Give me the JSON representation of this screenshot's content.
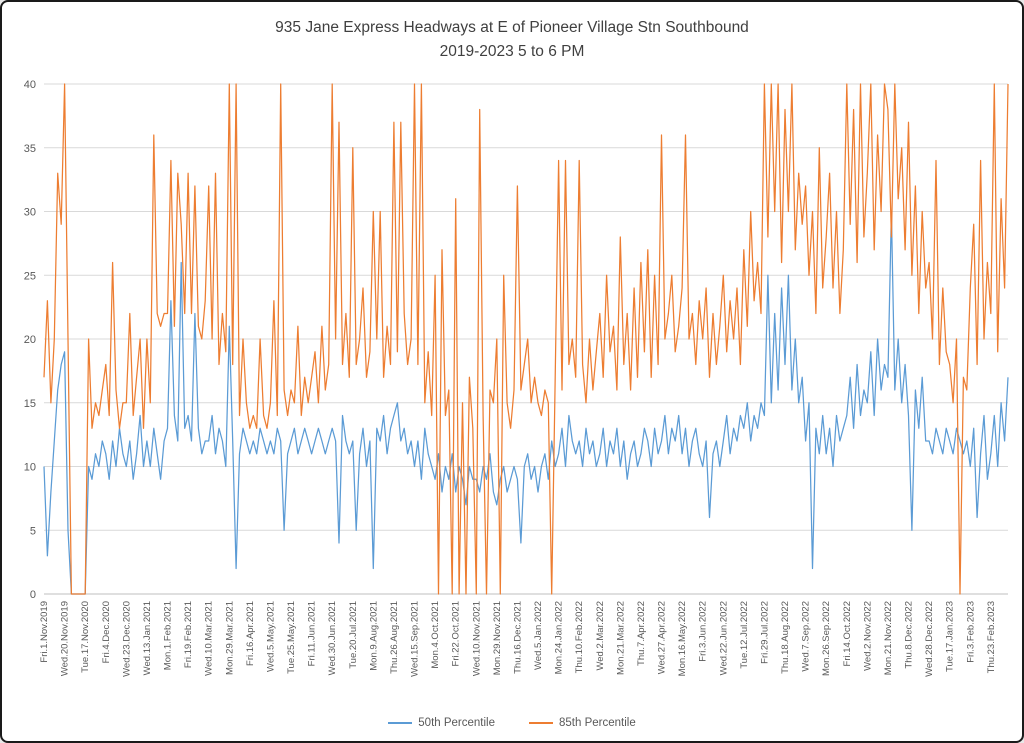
{
  "chart_data": {
    "type": "line",
    "title_line1": "935 Jane Express Headways at E of Pioneer Village Stn Southbound",
    "title_line2": "2019-2023 5 to 6 PM",
    "xlabel": "",
    "ylabel": "",
    "ylim": [
      0,
      40
    ],
    "y_tick_step": 5,
    "y_ticks": [
      0,
      5,
      10,
      15,
      20,
      25,
      30,
      35,
      40
    ],
    "grid": true,
    "legend_position": "bottom",
    "points_per_label": 6,
    "colors": {
      "grid": "#D9D9D9",
      "axis_line": "#BFBFBF",
      "axis_text": "#595959",
      "title_text": "#404040"
    },
    "x_labels": [
      "Fri.1.Nov.2019",
      "Wed.20.Nov.2019",
      "Tue.17.Nov.2020",
      "Fri.4.Dec.2020",
      "Wed.23.Dec.2020",
      "Wed.13.Jan.2021",
      "Mon.1.Feb.2021",
      "Fri.19.Feb.2021",
      "Wed.10.Mar.2021",
      "Mon.29.Mar.2021",
      "Fri.16.Apr.2021",
      "Wed.5.May.2021",
      "Tue.25.May.2021",
      "Fri.11.Jun.2021",
      "Wed.30.Jun.2021",
      "Tue.20.Jul.2021",
      "Mon.9.Aug.2021",
      "Thu.26.Aug.2021",
      "Wed.15.Sep.2021",
      "Mon.4.Oct.2021",
      "Fri.22.Oct.2021",
      "Wed.10.Nov.2021",
      "Mon.29.Nov.2021",
      "Thu.16.Dec.2021",
      "Wed.5.Jan.2022",
      "Mon.24.Jan.2022",
      "Thu.10.Feb.2022",
      "Wed.2.Mar.2022",
      "Mon.21.Mar.2022",
      "Thu.7.Apr.2022",
      "Wed.27.Apr.2022",
      "Mon.16.May.2022",
      "Fri.3.Jun.2022",
      "Wed.22.Jun.2022",
      "Tue.12.Jul.2022",
      "Fri.29.Jul.2022",
      "Thu.18.Aug.2022",
      "Wed.7.Sep.2022",
      "Mon.26.Sep.2022",
      "Fri.14.Oct.2022",
      "Wed.2.Nov.2022",
      "Mon.21.Nov.2022",
      "Thu.8.Dec.2022",
      "Wed.28.Dec.2022",
      "Tue.17.Jan.2023",
      "Fri.3.Feb.2023",
      "Thu.23.Feb.2023"
    ],
    "series": [
      {
        "name": "50th Percentile",
        "color": "#5B9BD5",
        "values": [
          10,
          3,
          8,
          12,
          16,
          18,
          19,
          5,
          0,
          0,
          0,
          0,
          0,
          10,
          9,
          11,
          10,
          12,
          11,
          9,
          12,
          10,
          13,
          11,
          10,
          12,
          9,
          11,
          14,
          10,
          12,
          10,
          13,
          11,
          9,
          12,
          13,
          23,
          14,
          12,
          26,
          13,
          14,
          12,
          22,
          13,
          11,
          12,
          12,
          14,
          11,
          13,
          12,
          10,
          21,
          12,
          2,
          11,
          13,
          12,
          11,
          12,
          11,
          13,
          12,
          11,
          12,
          11,
          13,
          12,
          5,
          11,
          12,
          13,
          11,
          12,
          13,
          12,
          11,
          12,
          13,
          12,
          11,
          12,
          13,
          12,
          4,
          14,
          12,
          11,
          12,
          5,
          11,
          13,
          10,
          12,
          2,
          13,
          12,
          14,
          11,
          13,
          14,
          15,
          12,
          13,
          11,
          12,
          10,
          12,
          9,
          13,
          11,
          10,
          9,
          11,
          8,
          10,
          9,
          11,
          8,
          10,
          9,
          7,
          10,
          9,
          9,
          8,
          10,
          9,
          11,
          8,
          7,
          9,
          10,
          8,
          9,
          10,
          9,
          4,
          10,
          11,
          9,
          10,
          8,
          10,
          11,
          9,
          12,
          10,
          11,
          13,
          10,
          14,
          12,
          11,
          12,
          10,
          13,
          11,
          12,
          10,
          11,
          13,
          10,
          12,
          11,
          13,
          10,
          12,
          9,
          11,
          12,
          10,
          11,
          13,
          12,
          10,
          13,
          11,
          12,
          14,
          11,
          13,
          12,
          14,
          11,
          13,
          10,
          12,
          13,
          11,
          10,
          12,
          6,
          11,
          12,
          10,
          12,
          14,
          11,
          13,
          12,
          14,
          13,
          15,
          12,
          14,
          13,
          15,
          14,
          25,
          15,
          22,
          16,
          24,
          18,
          25,
          16,
          20,
          15,
          17,
          12,
          15,
          2,
          13,
          11,
          14,
          11,
          13,
          10,
          14,
          12,
          13,
          14,
          17,
          13,
          18,
          14,
          16,
          15,
          19,
          14,
          20,
          16,
          18,
          17,
          30,
          16,
          20,
          15,
          18,
          14,
          5,
          16,
          13,
          17,
          12,
          12,
          11,
          13,
          12,
          11,
          13,
          12,
          11,
          13,
          12,
          11,
          12,
          10,
          13,
          6,
          11,
          14,
          9,
          11,
          14,
          10,
          15,
          12,
          17
        ]
      },
      {
        "name": "85th Percentile",
        "color": "#ED7D31",
        "values": [
          17,
          23,
          15,
          20,
          33,
          29,
          40,
          20,
          0,
          0,
          0,
          0,
          0,
          20,
          13,
          15,
          14,
          16,
          18,
          14,
          26,
          16,
          13,
          15,
          15,
          22,
          14,
          17,
          20,
          13,
          20,
          15,
          36,
          22,
          21,
          22,
          22,
          34,
          21,
          33,
          29,
          22,
          33,
          22,
          32,
          21,
          20,
          23,
          32,
          20,
          33,
          18,
          22,
          19,
          40,
          18,
          40,
          14,
          20,
          15,
          13,
          14,
          13,
          20,
          14,
          13,
          15,
          23,
          14,
          40,
          16,
          14,
          16,
          15,
          21,
          14,
          17,
          15,
          17,
          19,
          15,
          21,
          16,
          18,
          40,
          20,
          37,
          18,
          22,
          17,
          35,
          18,
          20,
          24,
          17,
          19,
          30,
          20,
          30,
          17,
          21,
          18,
          37,
          19,
          37,
          22,
          18,
          20,
          40,
          18,
          40,
          15,
          19,
          14,
          25,
          0,
          27,
          14,
          16,
          0,
          31,
          0,
          15,
          0,
          17,
          13,
          0,
          38,
          14,
          0,
          16,
          15,
          20,
          0,
          25,
          15,
          13,
          16,
          32,
          16,
          18,
          20,
          15,
          17,
          15,
          14,
          16,
          15,
          0,
          17,
          34,
          16,
          34,
          18,
          20,
          17,
          34,
          18,
          15,
          20,
          16,
          19,
          22,
          17,
          25,
          19,
          21,
          16,
          28,
          18,
          22,
          16,
          24,
          17,
          26,
          19,
          27,
          17,
          25,
          18,
          36,
          20,
          22,
          25,
          19,
          21,
          24,
          36,
          20,
          22,
          18,
          23,
          20,
          24,
          17,
          22,
          18,
          21,
          25,
          19,
          23,
          20,
          24,
          18,
          27,
          21,
          30,
          23,
          26,
          22,
          40,
          28,
          40,
          30,
          40,
          26,
          38,
          30,
          40,
          27,
          33,
          29,
          32,
          25,
          30,
          22,
          35,
          24,
          28,
          33,
          24,
          30,
          22,
          27,
          40,
          29,
          38,
          26,
          40,
          28,
          33,
          40,
          27,
          36,
          30,
          40,
          38,
          28,
          40,
          31,
          35,
          27,
          37,
          25,
          32,
          22,
          30,
          24,
          26,
          20,
          34,
          18,
          24,
          19,
          18,
          15,
          20,
          0,
          17,
          16,
          24,
          29,
          18,
          34,
          20,
          26,
          22,
          40,
          19,
          31,
          24,
          40
        ]
      }
    ]
  }
}
